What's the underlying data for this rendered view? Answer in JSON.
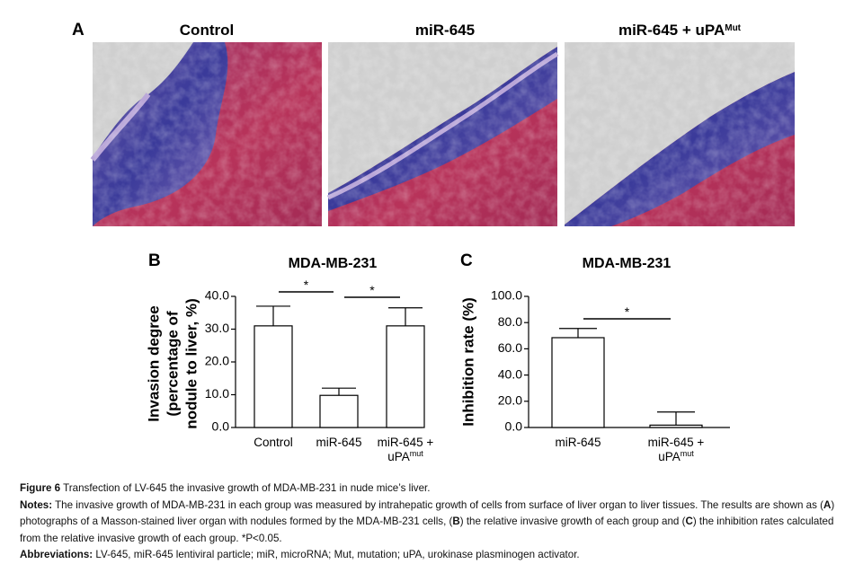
{
  "panel_a": {
    "label": "A",
    "photos": [
      {
        "text": "Control",
        "sup": null
      },
      {
        "text": "miR-645",
        "sup": null
      },
      {
        "text": "miR-645 + uPA",
        "sup": "Mut"
      }
    ]
  },
  "chart_data": [
    {
      "type": "bar",
      "panel_label": "B",
      "title": "MDA-MB-231",
      "y_label": [
        "Invasion degree",
        "(percentage of",
        "nodule to liver, %)"
      ],
      "categories": [
        "Control",
        "miR-645",
        [
          "miR-645 +",
          "uPA"
        ]
      ],
      "category_superscripts": [
        null,
        null,
        "mut"
      ],
      "values": [
        31,
        9.8,
        31
      ],
      "errors": [
        6,
        2.2,
        5.5
      ],
      "color": "#ffffff",
      "ylim": [
        0,
        40
      ],
      "yticks": [
        {
          "value": 0,
          "label": "0.0"
        },
        {
          "value": 10,
          "label": "10.0"
        },
        {
          "value": 20,
          "label": "20.0"
        },
        {
          "value": 30,
          "label": "30.0"
        },
        {
          "value": 40,
          "label": "40.0"
        }
      ],
      "annotations": [
        {
          "text": "*",
          "from": 0,
          "to": 1
        },
        {
          "text": "*",
          "from": 1,
          "to": 2
        }
      ]
    },
    {
      "type": "bar",
      "panel_label": "C",
      "title": "MDA-MB-231",
      "y_label": [
        "Inhibition rate (%)"
      ],
      "categories": [
        "miR-645",
        [
          "miR-645 +",
          "uPA"
        ]
      ],
      "category_superscripts": [
        null,
        "mut"
      ],
      "values": [
        68.5,
        1.8
      ],
      "errors": [
        7,
        10
      ],
      "color": "#ffffff",
      "ylim": [
        0,
        100
      ],
      "yticks": [
        {
          "value": 0,
          "label": "0.0"
        },
        {
          "value": 20,
          "label": "20.0"
        },
        {
          "value": 40,
          "label": "40.0"
        },
        {
          "value": 60,
          "label": "60.0"
        },
        {
          "value": 80,
          "label": "80.0"
        },
        {
          "value": 100,
          "label": "100.0"
        }
      ],
      "annotations": [
        {
          "text": "*",
          "from": 0,
          "to": 1
        }
      ]
    }
  ],
  "caption": {
    "label": "Figure 6",
    "text": " Transfection of LV-645 the invasive growth of MDA-MB-231 in nude mice’s liver."
  },
  "notes": {
    "segments": [
      {
        "text": "Notes:",
        "bold": true
      },
      {
        "text": " The invasive growth of MDA-MB-231 in each group was measured by intrahepatic growth of cells from surface of liver organ to liver tissues. The results are shown as (",
        "bold": false
      },
      {
        "text": "A",
        "bold": true
      },
      {
        "text": ") photographs of a Masson-stained liver organ with nodules formed by the MDA-MB-231 cells, (",
        "bold": false
      },
      {
        "text": "B",
        "bold": true
      },
      {
        "text": ") the relative invasive growth of each group and (",
        "bold": false
      },
      {
        "text": "C",
        "bold": true
      },
      {
        "text": ") the inhibition rates calculated from the relative invasive growth of each group. *P<0.05.",
        "bold": false
      }
    ]
  },
  "abbreviations": {
    "segments": [
      {
        "text": "Abbreviations:",
        "bold": true
      },
      {
        "text": " LV-645, miR-645 lentiviral particle; miR, microRNA; Mut, mutation; uPA, urokinase plasminogen activator.",
        "bold": false
      }
    ]
  }
}
